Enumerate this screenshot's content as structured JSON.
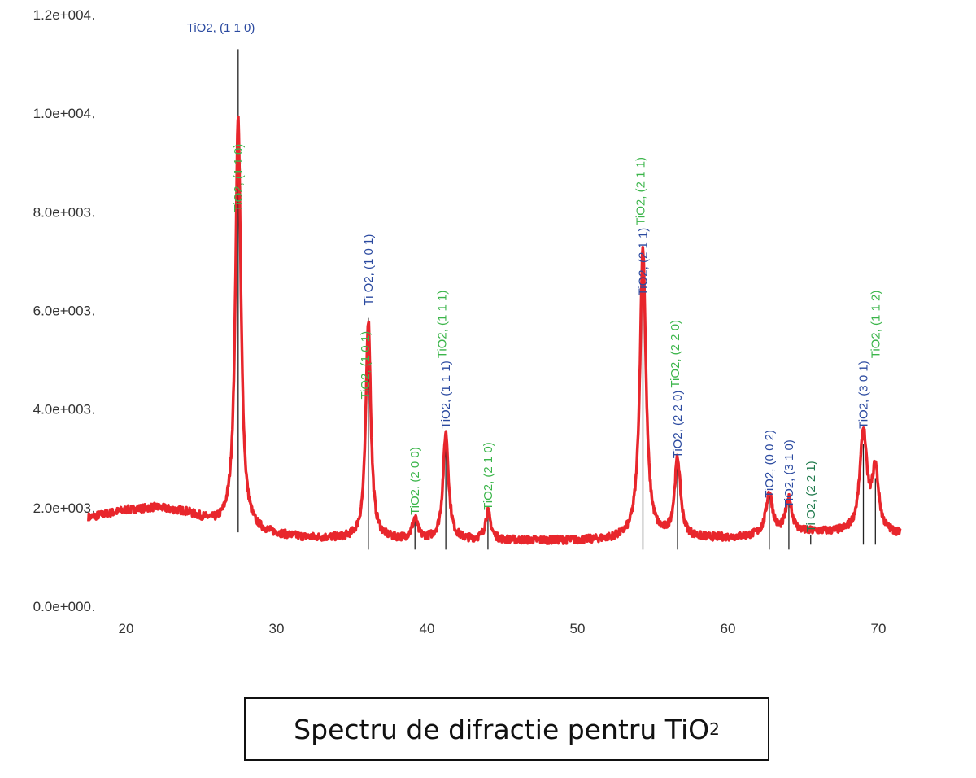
{
  "chart_data": {
    "type": "line",
    "title": "Spectru de difractie pentru TiO",
    "title_subscript": "2",
    "xlabel": "",
    "ylabel": "",
    "xlim": [
      17.5,
      71.5
    ],
    "ylim": [
      0,
      12000
    ],
    "x_ticks": [
      20,
      30,
      40,
      50,
      60,
      70
    ],
    "y_ticks": [
      {
        "value": 0,
        "label": "0.0e+000"
      },
      {
        "value": 2000,
        "label": "2.0e+003"
      },
      {
        "value": 4000,
        "label": "4.0e+003"
      },
      {
        "value": 6000,
        "label": "6.0e+003"
      },
      {
        "value": 8000,
        "label": "8.0e+003"
      },
      {
        "value": 10000,
        "label": "1.0e+004"
      },
      {
        "value": 12000,
        "label": "1.2e+004"
      }
    ],
    "grid": false,
    "series_color": "#e8262c",
    "baseline": [
      [
        17.5,
        1800
      ],
      [
        20,
        1950
      ],
      [
        22,
        2000
      ],
      [
        24,
        1900
      ],
      [
        26,
        1650
      ],
      [
        28,
        1500
      ],
      [
        32,
        1380
      ],
      [
        40,
        1330
      ],
      [
        50,
        1330
      ],
      [
        60,
        1380
      ],
      [
        66,
        1500
      ],
      [
        71.5,
        1450
      ]
    ],
    "peaks": [
      {
        "two_theta": 27.45,
        "intensity": 9900,
        "width": 0.22
      },
      {
        "two_theta": 36.1,
        "intensity": 5800,
        "width": 0.2
      },
      {
        "two_theta": 39.2,
        "intensity": 1750,
        "width": 0.22
      },
      {
        "two_theta": 41.25,
        "intensity": 3500,
        "width": 0.22
      },
      {
        "two_theta": 44.05,
        "intensity": 1900,
        "width": 0.22
      },
      {
        "two_theta": 54.35,
        "intensity": 7250,
        "width": 0.24
      },
      {
        "two_theta": 56.65,
        "intensity": 2950,
        "width": 0.24
      },
      {
        "two_theta": 62.75,
        "intensity": 2300,
        "width": 0.26
      },
      {
        "two_theta": 64.05,
        "intensity": 2150,
        "width": 0.26
      },
      {
        "two_theta": 69.0,
        "intensity": 3500,
        "width": 0.28
      },
      {
        "two_theta": 69.8,
        "intensity": 2700,
        "width": 0.26
      }
    ],
    "reference_lines": [
      {
        "two_theta": 27.45,
        "top": 11300,
        "bottom": 1500
      },
      {
        "two_theta": 36.1,
        "top": 5850,
        "bottom": 1150
      },
      {
        "two_theta": 39.2,
        "top": 1750,
        "bottom": 1150
      },
      {
        "two_theta": 41.25,
        "top": 3400,
        "bottom": 1150
      },
      {
        "two_theta": 44.05,
        "top": 1900,
        "bottom": 1150
      },
      {
        "two_theta": 54.35,
        "top": 6250,
        "bottom": 1150
      },
      {
        "two_theta": 56.65,
        "top": 2850,
        "bottom": 1150
      },
      {
        "two_theta": 62.75,
        "top": 2250,
        "bottom": 1150
      },
      {
        "two_theta": 64.05,
        "top": 2100,
        "bottom": 1150
      },
      {
        "two_theta": 65.5,
        "top": 1450,
        "bottom": 1250
      },
      {
        "two_theta": 69.0,
        "top": 3300,
        "bottom": 1250
      },
      {
        "two_theta": 69.8,
        "top": 2600,
        "bottom": 1250
      }
    ],
    "annotations": [
      {
        "text": "TiO2, (1 1 0)",
        "two_theta": 27.45,
        "at": 8000,
        "color": "#3bb54a",
        "orientation": "vertical"
      },
      {
        "text": "TiO2, (1 1 0)",
        "two_theta": 26.3,
        "at": 11650,
        "color": "#2b4aa0",
        "orientation": "horizontal"
      },
      {
        "text": "Ti O2, (1 0 1)",
        "two_theta": 36.1,
        "at": 6100,
        "color": "#2b4aa0",
        "orientation": "vertical"
      },
      {
        "text": "TiO2, (1 0 1)",
        "two_theta": 35.9,
        "at": 4200,
        "color": "#3bb54a",
        "orientation": "vertical"
      },
      {
        "text": "TiO2, (2 0 0)",
        "two_theta": 39.2,
        "at": 1850,
        "color": "#3bb54a",
        "orientation": "vertical"
      },
      {
        "text": "TiO2, (1 1 1)",
        "two_theta": 41.25,
        "at": 3600,
        "color": "#2b4aa0",
        "orientation": "vertical"
      },
      {
        "text": "TiO2, (1 1 1)",
        "two_theta": 41.0,
        "at": 2500,
        "color": "#3bb54a",
        "orientation": "vertical"
      },
      {
        "text": "TiO2, (2 1 0)",
        "two_theta": 44.05,
        "at": 1950,
        "color": "#3bb54a",
        "orientation": "vertical"
      },
      {
        "text": "TiO2, (2 1 1)",
        "two_theta": 54.35,
        "at": 6300,
        "color": "#2b4aa0",
        "orientation": "vertical"
      },
      {
        "text": "TiO2, (2 1 1)",
        "two_theta": 54.2,
        "at": 5000,
        "color": "#3bb54a",
        "orientation": "vertical"
      },
      {
        "text": "TiO2, (2 2 0)",
        "two_theta": 56.65,
        "at": 3000,
        "color": "#2b4aa0",
        "orientation": "vertical"
      },
      {
        "text": "TiO2, (2 2 0)",
        "two_theta": 56.5,
        "at": 2500,
        "color": "#3bb54a",
        "orientation": "vertical"
      },
      {
        "text": "TiO2, (0 0 2)",
        "two_theta": 62.75,
        "at": 2200,
        "color": "#2b4aa0",
        "orientation": "vertical"
      },
      {
        "text": "TiO2, (3 1 0)",
        "two_theta": 64.05,
        "at": 2000,
        "color": "#2b4aa0",
        "orientation": "vertical"
      },
      {
        "text": "Ti O2, (2 2 1)",
        "two_theta": 65.5,
        "at": 1500,
        "color": "#1f7a4d",
        "orientation": "vertical"
      },
      {
        "text": "TiO2, (3 0 1)",
        "two_theta": 69.0,
        "at": 3600,
        "color": "#2b4aa0",
        "orientation": "vertical"
      },
      {
        "text": "TiO2, (1 1 2)",
        "two_theta": 69.8,
        "at": 2900,
        "color": "#3bb54a",
        "orientation": "vertical"
      }
    ]
  }
}
